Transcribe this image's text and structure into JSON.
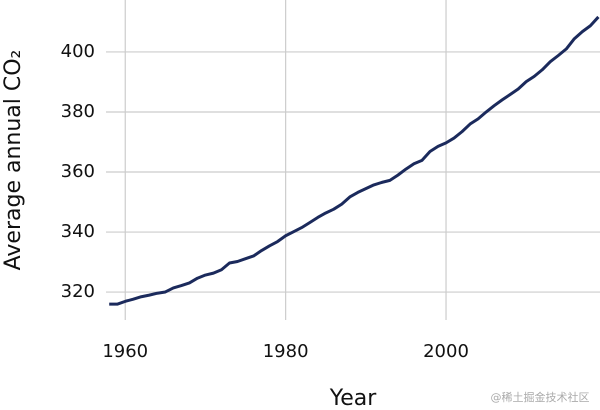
{
  "chart_data": {
    "type": "line",
    "x_label": "Year",
    "y_label": "Average annual CO₂",
    "watermark": "@稀土掘金技术社区",
    "x": [
      1958,
      1959,
      1960,
      1961,
      1962,
      1963,
      1964,
      1965,
      1966,
      1967,
      1968,
      1969,
      1970,
      1971,
      1972,
      1973,
      1974,
      1975,
      1976,
      1977,
      1978,
      1979,
      1980,
      1981,
      1982,
      1983,
      1984,
      1985,
      1986,
      1987,
      1988,
      1989,
      1990,
      1991,
      1992,
      1993,
      1994,
      1995,
      1996,
      1997,
      1998,
      1999,
      2000,
      2001,
      2002,
      2003,
      2004,
      2005,
      2006,
      2007,
      2008,
      2009,
      2010,
      2011,
      2012,
      2013,
      2014,
      2015,
      2016,
      2017,
      2018,
      2019
    ],
    "series": [
      {
        "color": "#1b2a5c",
        "values": [
          315.98,
          315.97,
          316.91,
          317.64,
          318.45,
          318.99,
          319.62,
          320.04,
          321.38,
          322.16,
          323.04,
          324.62,
          325.68,
          326.32,
          327.45,
          329.68,
          330.19,
          331.12,
          332.03,
          333.84,
          335.41,
          336.84,
          338.76,
          340.12,
          341.48,
          343.15,
          344.85,
          346.35,
          347.61,
          349.31,
          351.69,
          353.2,
          354.45,
          355.7,
          356.54,
          357.21,
          358.96,
          360.97,
          362.74,
          363.88,
          366.84,
          368.54,
          369.71,
          371.32,
          373.45,
          375.98,
          377.7,
          379.98,
          382.09,
          384.02,
          385.83,
          387.64,
          390.1,
          391.85,
          394.06,
          396.74,
          398.81,
          401.01,
          404.41,
          406.76,
          408.72,
          411.66
        ]
      }
    ],
    "xlim": [
      1957.6,
      2019.2
    ],
    "xticks": [
      1960,
      1980,
      2000
    ],
    "ylim": [
      310.7,
      417.3
    ],
    "yticks": [
      320,
      340,
      360,
      380,
      400
    ],
    "grid": true
  }
}
